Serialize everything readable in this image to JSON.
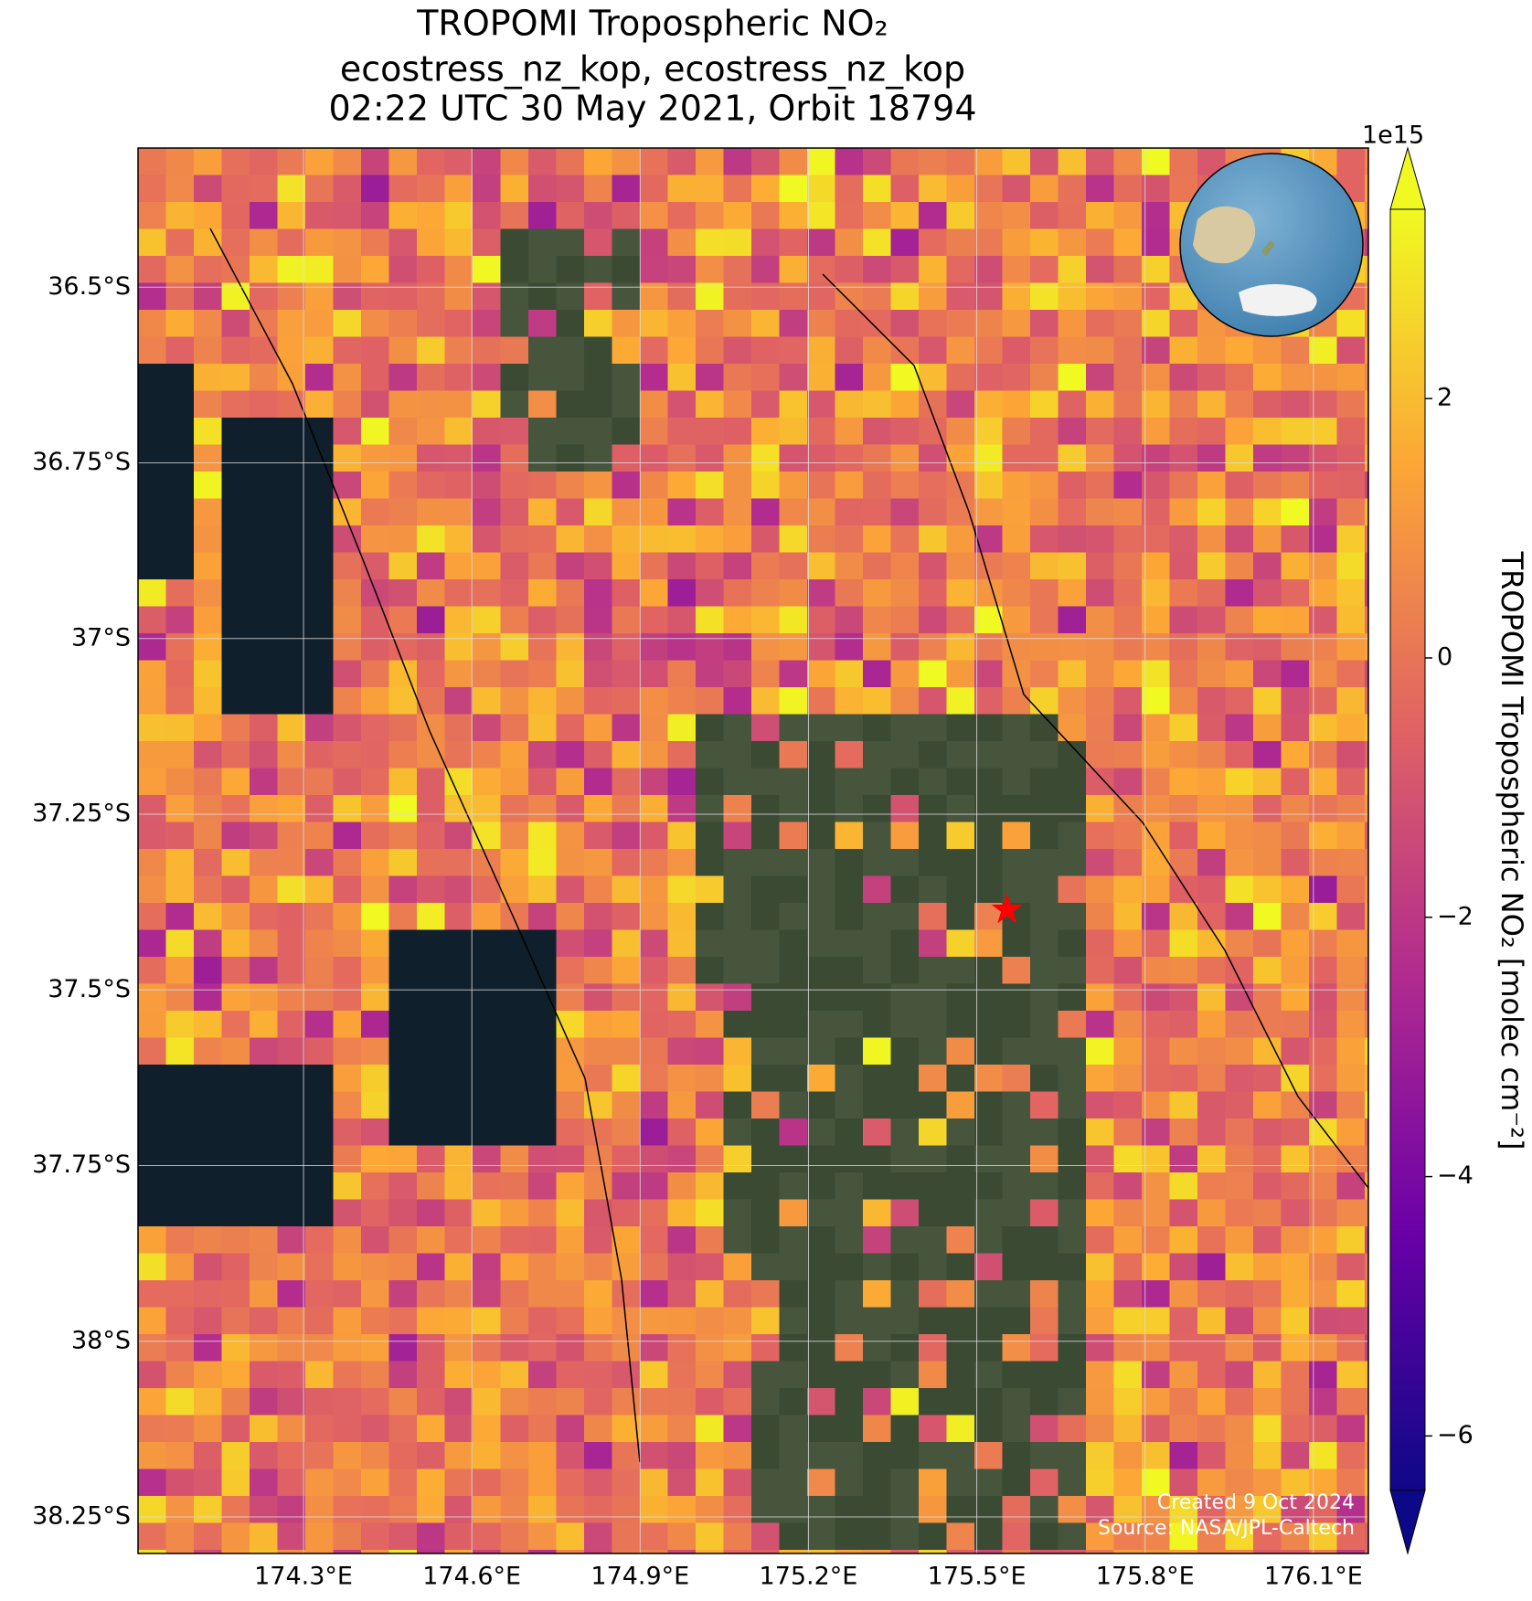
{
  "chart_data": {
    "type": "map",
    "title": [
      "TROPOMI Tropospheric NO₂",
      "ecostress_nz_kop, ecostress_nz_kop",
      "02:22 UTC 30 May 2021, Orbit 18794"
    ],
    "xlim": [
      174.005,
      176.198
    ],
    "ylim": [
      -38.302,
      -36.302
    ],
    "xticks": [
      {
        "value": 174.3,
        "label": "174.3°E"
      },
      {
        "value": 174.6,
        "label": "174.6°E"
      },
      {
        "value": 174.9,
        "label": "174.9°E"
      },
      {
        "value": 175.2,
        "label": "175.2°E"
      },
      {
        "value": 175.5,
        "label": "175.5°E"
      },
      {
        "value": 175.8,
        "label": "175.8°E"
      },
      {
        "value": 176.1,
        "label": "176.1°E"
      }
    ],
    "yticks": [
      {
        "value": -36.5,
        "label": "36.5°S"
      },
      {
        "value": -36.75,
        "label": "36.75°S"
      },
      {
        "value": -37,
        "label": "37°S"
      },
      {
        "value": -37.25,
        "label": "37.25°S"
      },
      {
        "value": -37.5,
        "label": "37.5°S"
      },
      {
        "value": -37.75,
        "label": "37.75°S"
      },
      {
        "value": -38,
        "label": "38°S"
      },
      {
        "value": -38.25,
        "label": "38.25°S"
      }
    ],
    "grid": true,
    "marker": {
      "lon": 175.554,
      "lat": -37.386,
      "color": "#ff0000"
    },
    "colorbar": {
      "label": "TROPOMI Tropospheric NO₂ [molec cm⁻²]",
      "exponent_label": "1e15",
      "cmap": "plasma",
      "clim": [
        -6.42,
        3.46
      ],
      "ticks": [
        {
          "value": -6,
          "label": "−6"
        },
        {
          "value": -4,
          "label": "−4"
        },
        {
          "value": -2,
          "label": "−2"
        },
        0,
        2
      ]
    },
    "annotations": [
      "Created 9 Oct 2024",
      "Source: NASA/JPL-Caltech"
    ]
  }
}
